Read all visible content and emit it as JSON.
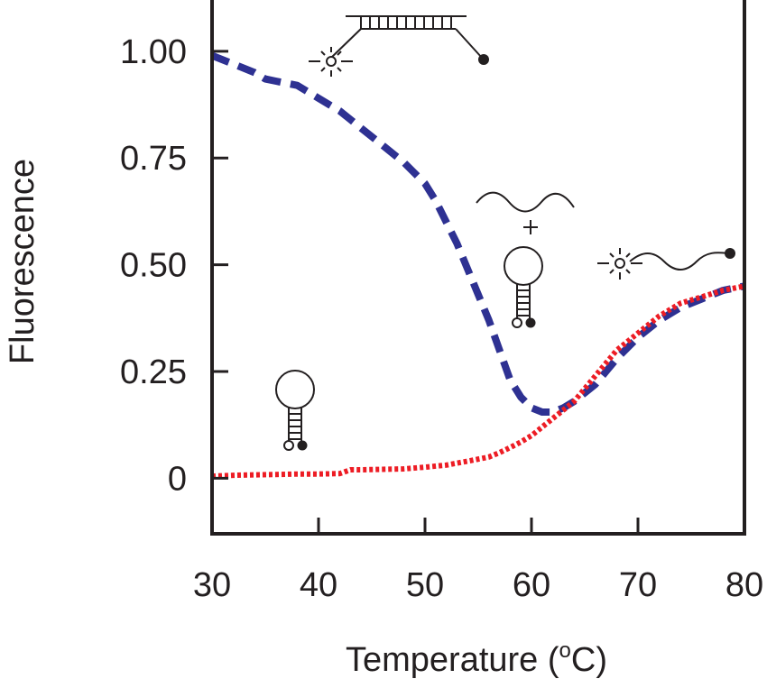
{
  "chart_data": {
    "type": "line",
    "xlabel_text": "Temperature (",
    "xlabel_sup": "o",
    "xlabel_tail": "C)",
    "ylabel": "Fluorescence",
    "xlim": [
      30,
      80
    ],
    "ylim": [
      -0.13,
      1.12
    ],
    "x_ticks": [
      30,
      40,
      50,
      60,
      70,
      80
    ],
    "x_tick_labels": [
      "30",
      "40",
      "50",
      "60",
      "70",
      "80"
    ],
    "y_ticks": [
      0,
      0.25,
      0.5,
      0.75,
      1.0
    ],
    "y_tick_labels": [
      "0",
      "0.25",
      "0.50",
      "0.75",
      "1.00"
    ],
    "grid": false,
    "series": [
      {
        "style": "dashed",
        "color": "#2e3192",
        "x": [
          30,
          32,
          34,
          35,
          36,
          37,
          38,
          40,
          42,
          44,
          46,
          48,
          50,
          51,
          52,
          53,
          54,
          55,
          56,
          57,
          58,
          59,
          60,
          61,
          62,
          63,
          64,
          65,
          66,
          67,
          68,
          70,
          72,
          74,
          76,
          78,
          80
        ],
        "y": [
          0.99,
          0.97,
          0.95,
          0.935,
          0.93,
          0.925,
          0.92,
          0.89,
          0.86,
          0.82,
          0.78,
          0.74,
          0.69,
          0.65,
          0.6,
          0.55,
          0.49,
          0.43,
          0.37,
          0.3,
          0.23,
          0.19,
          0.165,
          0.155,
          0.155,
          0.165,
          0.18,
          0.2,
          0.22,
          0.25,
          0.28,
          0.33,
          0.37,
          0.4,
          0.42,
          0.44,
          0.45
        ]
      },
      {
        "style": "dotted",
        "color": "#ed1c24",
        "x": [
          30,
          32,
          34,
          36,
          38,
          40,
          42,
          43,
          44,
          46,
          48,
          50,
          52,
          54,
          56,
          57,
          58,
          59,
          60,
          61,
          62,
          63,
          64,
          65,
          66,
          67,
          68,
          70,
          72,
          74,
          76,
          78,
          80
        ],
        "y": [
          0.005,
          0.007,
          0.008,
          0.009,
          0.01,
          0.01,
          0.011,
          0.02,
          0.02,
          0.021,
          0.022,
          0.026,
          0.031,
          0.04,
          0.05,
          0.06,
          0.072,
          0.085,
          0.1,
          0.12,
          0.14,
          0.16,
          0.18,
          0.21,
          0.24,
          0.27,
          0.3,
          0.34,
          0.38,
          0.41,
          0.425,
          0.44,
          0.45
        ]
      }
    ]
  }
}
